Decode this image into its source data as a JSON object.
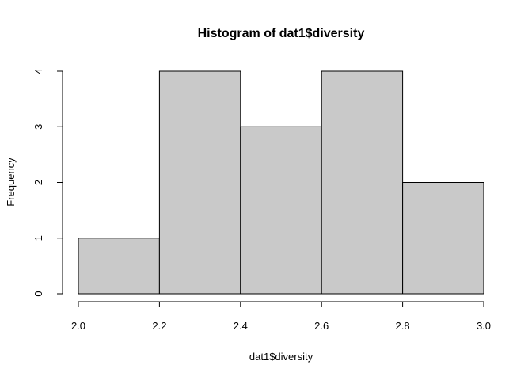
{
  "chart_data": {
    "type": "bar",
    "title": "Histogram of dat1$diversity",
    "xlabel": "dat1$diversity",
    "ylabel": "Frequency",
    "bins": [
      {
        "x0": 2.0,
        "x1": 2.2,
        "count": 1
      },
      {
        "x0": 2.2,
        "x1": 2.4,
        "count": 4
      },
      {
        "x0": 2.4,
        "x1": 2.6,
        "count": 3
      },
      {
        "x0": 2.6,
        "x1": 2.8,
        "count": 4
      },
      {
        "x0": 2.8,
        "x1": 3.0,
        "count": 2
      }
    ],
    "xlim": [
      2.0,
      3.0
    ],
    "ylim": [
      0,
      4
    ],
    "x_ticks": [
      2.0,
      2.2,
      2.4,
      2.6,
      2.8,
      3.0
    ],
    "x_tick_labels": [
      "2.0",
      "2.2",
      "2.4",
      "2.6",
      "2.8",
      "3.0"
    ],
    "y_ticks": [
      0,
      1,
      2,
      3,
      4
    ],
    "y_tick_labels": [
      "0",
      "1",
      "2",
      "3",
      "4"
    ],
    "bar_fill": "#c9c9c9",
    "bar_stroke": "#000000",
    "grid": false,
    "legend": "none"
  }
}
